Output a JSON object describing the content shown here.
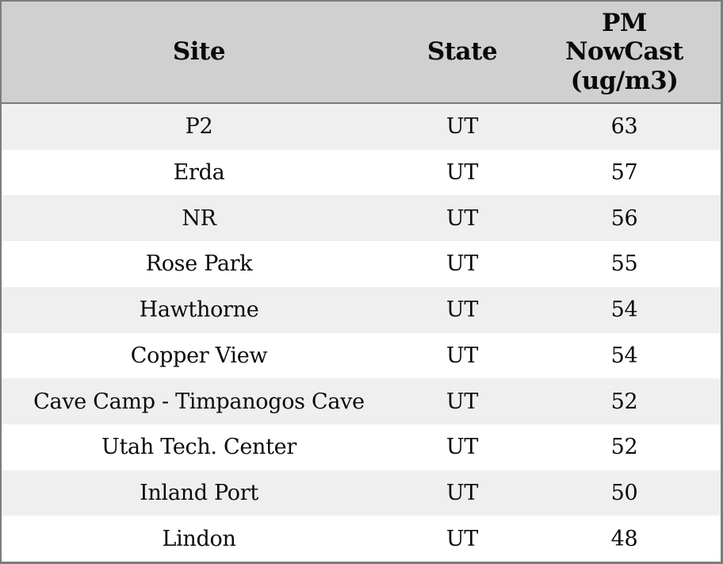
{
  "table": {
    "columns": [
      {
        "id": "site",
        "label": "Site"
      },
      {
        "id": "state",
        "label": "State"
      },
      {
        "id": "pm",
        "label": "PM\nNowCast\n(ug/m3)"
      }
    ],
    "rows": [
      {
        "site": "P2",
        "state": "UT",
        "pm": "63"
      },
      {
        "site": "Erda",
        "state": "UT",
        "pm": "57"
      },
      {
        "site": "NR",
        "state": "UT",
        "pm": "56"
      },
      {
        "site": "Rose Park",
        "state": "UT",
        "pm": "55"
      },
      {
        "site": "Hawthorne",
        "state": "UT",
        "pm": "54"
      },
      {
        "site": "Copper View",
        "state": "UT",
        "pm": "54"
      },
      {
        "site": "Cave Camp - Timpanogos Cave",
        "state": "UT",
        "pm": "52"
      },
      {
        "site": "Utah Tech. Center",
        "state": "UT",
        "pm": "52"
      },
      {
        "site": "Inland Port",
        "state": "UT",
        "pm": "50"
      },
      {
        "site": "Lindon",
        "state": "UT",
        "pm": "48"
      }
    ]
  },
  "colors": {
    "header_bg": "#d0d0d0",
    "stripe_bg": "#efefef",
    "row_bg": "#ffffff",
    "border": "#7c7c7c",
    "text": "#0a0a0a"
  }
}
